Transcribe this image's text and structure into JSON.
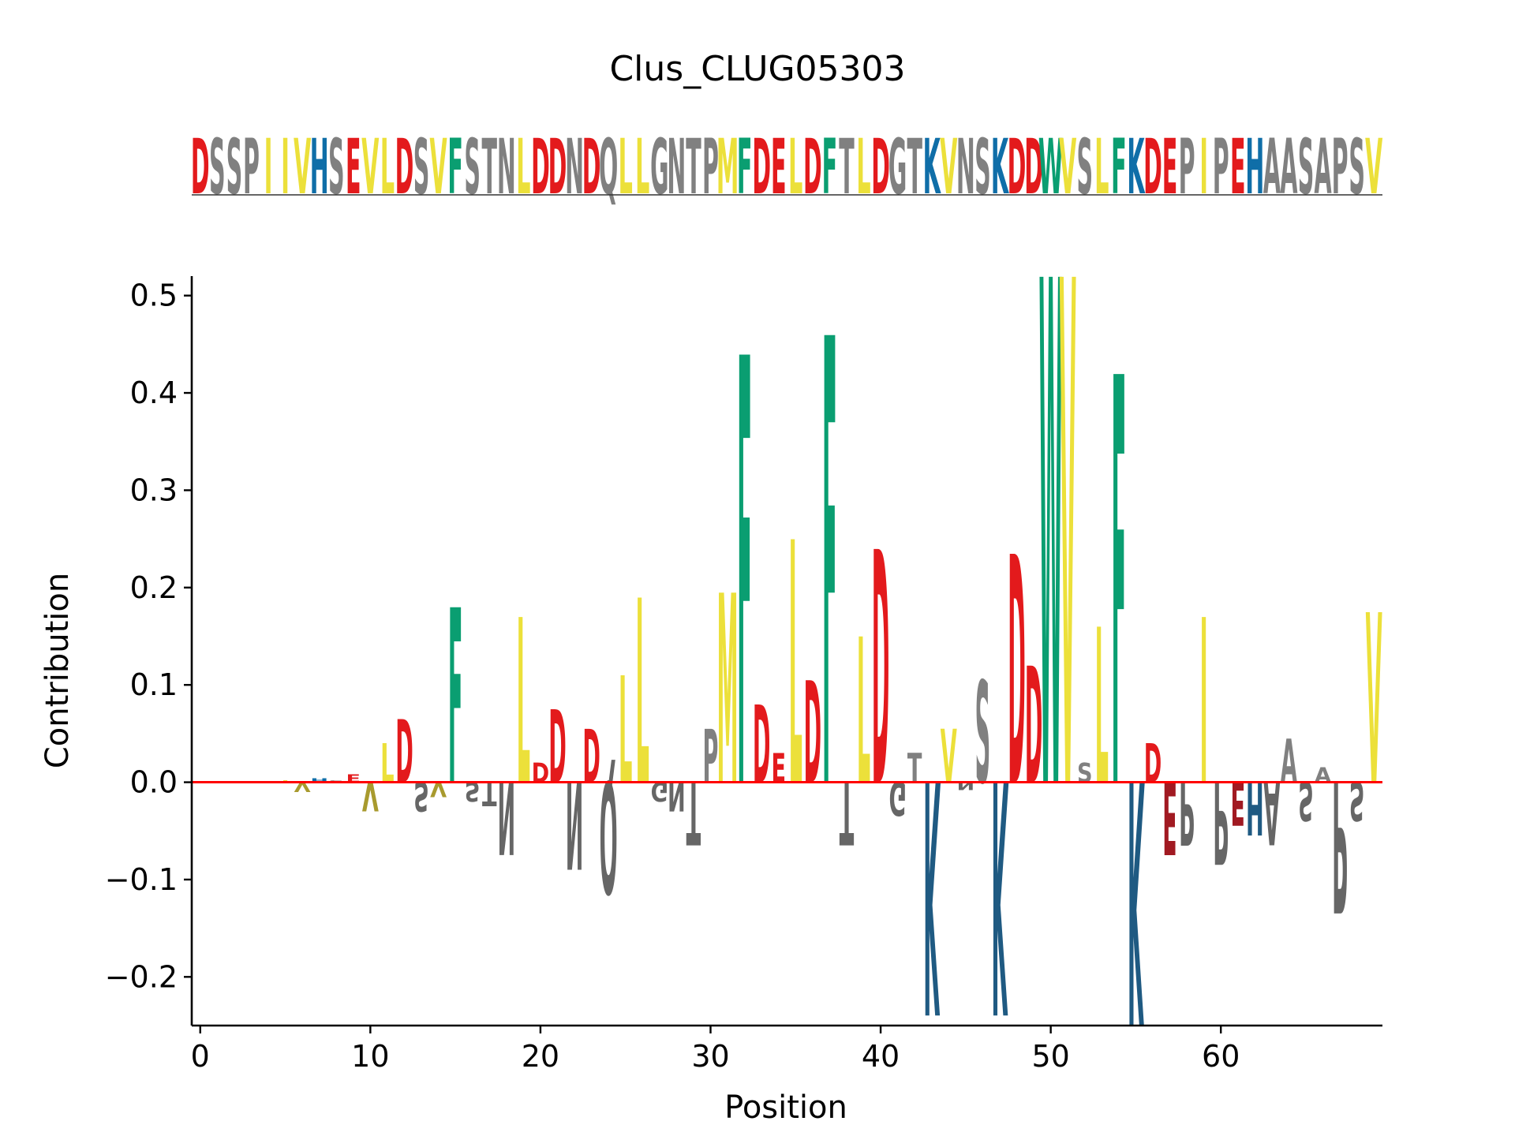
{
  "chart_data": {
    "type": "bar",
    "title": "Clus_CLUG05303",
    "xlabel": "Position",
    "ylabel": "Contribution",
    "xlim": [
      -0.5,
      69.5
    ],
    "ylim": [
      -0.25,
      0.52
    ],
    "xticks": [
      0,
      10,
      20,
      30,
      40,
      50,
      60
    ],
    "yticks": [
      -0.2,
      -0.1,
      0.0,
      0.1,
      0.2,
      0.3,
      0.4,
      0.5
    ],
    "ytick_labels": [
      "−0.2",
      "−0.1",
      "0.0",
      "0.1",
      "0.2",
      "0.3",
      "0.4",
      "0.5"
    ],
    "grid": false,
    "sequence": "DSSPIIVHSEVLDSVFSTNLDDNDQLLGNTPMFDELDFTLDGTKVNSKDDWVSLFKDEPIPEHAASAPSV",
    "residue_colors": {
      "D": "#e31a1c",
      "E": "#e31a1c",
      "K": "#0f6ea8",
      "H": "#0f6ea8",
      "R": "#0f6ea8",
      "F": "#0a9e71",
      "W": "#0a9e71",
      "Y": "#0a9e71",
      "I": "#ece03a",
      "L": "#ece03a",
      "V": "#ece03a",
      "M": "#ece03a",
      "S": "#808080",
      "P": "#808080",
      "T": "#808080",
      "N": "#808080",
      "Q": "#808080",
      "G": "#808080",
      "A": "#808080"
    },
    "negative_colors": {
      "D": "#a11a22",
      "E": "#a11a22",
      "K": "#1f5a82",
      "H": "#1f5a82",
      "V": "#a89a2e",
      "L": "#a89a2e",
      "I": "#a89a2e",
      "default": "#666666"
    },
    "values": [
      0,
      0,
      0,
      0,
      0,
      0.002,
      -0.01,
      0.004,
      0.002,
      0.008,
      -0.03,
      0.04,
      0.065,
      -0.03,
      -0.015,
      0.18,
      -0.02,
      -0.025,
      -0.075,
      0.17,
      0.02,
      0.075,
      -0.09,
      0.055,
      -0.115,
      0.11,
      0.19,
      -0.02,
      -0.03,
      -0.065,
      0.055,
      0.195,
      0.44,
      0.08,
      0.03,
      0.25,
      0.105,
      0.46,
      -0.065,
      0.15,
      0.24,
      -0.035,
      0.03,
      -0.24,
      0.055,
      -0.008,
      0.105,
      -0.24,
      0.235,
      0.12,
      0.52,
      0.52,
      0.02,
      0.16,
      0.42,
      -0.25,
      0.04,
      -0.075,
      -0.065,
      0.17,
      -0.085,
      -0.045,
      -0.055,
      -0.065,
      0.045,
      -0.04,
      0.015,
      -0.135,
      -0.04,
      0.175
    ]
  }
}
